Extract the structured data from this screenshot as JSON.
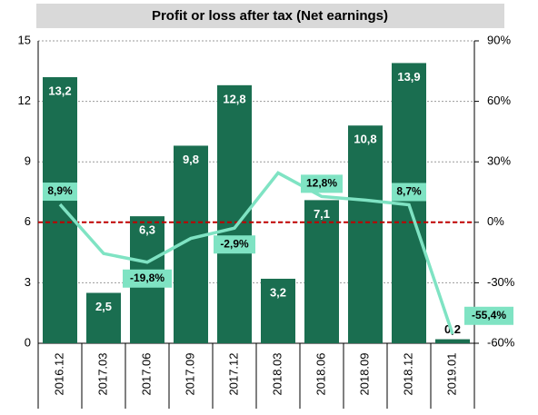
{
  "chart_data": {
    "type": "bar_line",
    "title": "Profit or loss after tax (Net earnings)",
    "categories": [
      "2016.12",
      "2017.03",
      "2017.06",
      "2017.09",
      "2017.12",
      "2018.03",
      "2018.06",
      "2018.09",
      "2018.12",
      "2019.01"
    ],
    "series": [
      {
        "type": "bar",
        "color": "#1a6e50",
        "axis": "y",
        "values": [
          13.2,
          2.5,
          6.3,
          9.8,
          12.8,
          3.2,
          7.1,
          10.8,
          13.9,
          0.2
        ],
        "value_labels": [
          "13,2",
          "2,5",
          "6,3",
          "9,8",
          "12,8",
          "3,2",
          "7,1",
          "10,8",
          "13,9",
          "0,2"
        ]
      },
      {
        "type": "line",
        "color": "#7fe3c3",
        "axis": "y2",
        "values": [
          8.9,
          -15.5,
          -19.8,
          -8,
          -2.9,
          24.5,
          12.8,
          11,
          8.7,
          -55.4
        ],
        "value_labels": [
          "8,9%",
          null,
          "-19,8%",
          null,
          "-2,9%",
          null,
          "12,8%",
          null,
          "8,7%",
          "-55,4%"
        ]
      }
    ],
    "ylim": [
      0,
      15
    ],
    "yticks": [
      0,
      3,
      6,
      9,
      12,
      15
    ],
    "y2lim": [
      -60,
      90
    ],
    "y2ticks": [
      {
        "value": -60,
        "label": "-60%"
      },
      {
        "value": -30,
        "label": "-30%"
      },
      {
        "value": 0,
        "label": "0%"
      },
      {
        "value": 30,
        "label": "30%"
      },
      {
        "value": 60,
        "label": "60%"
      },
      {
        "value": 90,
        "label": "90%"
      }
    ],
    "grid": true,
    "zero_line_color": "#c00000"
  }
}
